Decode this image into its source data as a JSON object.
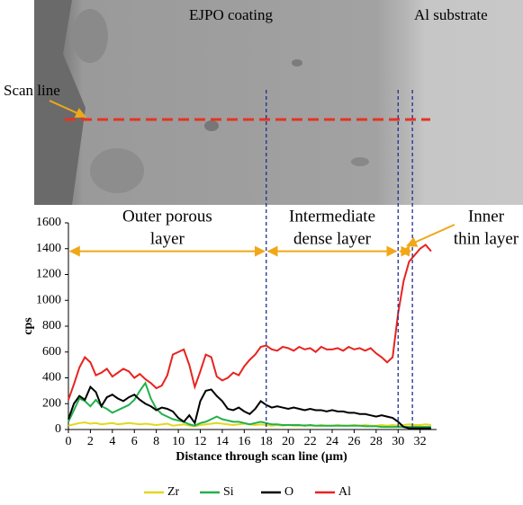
{
  "image": {
    "labels": [
      "EJPO coating",
      "Al substrate",
      "Scan line"
    ]
  },
  "chart_data": {
    "type": "line",
    "y_label": "cps",
    "x_label": "Distance through scan line (µm)",
    "x": [
      0,
      0.5,
      1,
      1.5,
      2,
      2.5,
      3,
      3.5,
      4,
      4.5,
      5,
      5.5,
      6,
      6.5,
      7,
      7.5,
      8,
      8.5,
      9,
      9.5,
      10,
      10.5,
      11,
      11.5,
      12,
      12.5,
      13,
      13.5,
      14,
      14.5,
      15,
      15.5,
      16,
      16.5,
      17,
      17.5,
      18,
      18.5,
      19,
      19.5,
      20,
      20.5,
      21,
      21.5,
      22,
      22.5,
      23,
      23.5,
      24,
      24.5,
      25,
      25.5,
      26,
      26.5,
      27,
      27.5,
      28,
      28.5,
      29,
      29.5,
      30,
      30.5,
      31,
      31.5,
      32,
      32.5,
      33
    ],
    "series": [
      {
        "name": "Zr",
        "color": "#e2d81c",
        "values": [
          30,
          40,
          50,
          55,
          45,
          50,
          40,
          45,
          50,
          40,
          45,
          50,
          45,
          40,
          45,
          40,
          35,
          40,
          45,
          30,
          35,
          40,
          30,
          25,
          35,
          40,
          45,
          50,
          45,
          40,
          35,
          40,
          45,
          40,
          35,
          40,
          35,
          30,
          35,
          30,
          35,
          30,
          30,
          35,
          30,
          30,
          35,
          30,
          30,
          35,
          30,
          30,
          35,
          30,
          35,
          30,
          30,
          35,
          30,
          35,
          30,
          35,
          40,
          35,
          35,
          40,
          35
        ]
      },
      {
        "name": "Si",
        "color": "#22b14c",
        "values": [
          60,
          150,
          240,
          220,
          180,
          230,
          180,
          160,
          130,
          150,
          170,
          190,
          230,
          300,
          360,
          240,
          160,
          120,
          100,
          80,
          70,
          60,
          40,
          30,
          50,
          60,
          80,
          100,
          80,
          70,
          60,
          60,
          50,
          40,
          50,
          60,
          50,
          40,
          40,
          35,
          35,
          35,
          35,
          30,
          35,
          30,
          30,
          30,
          30,
          30,
          30,
          30,
          30,
          30,
          25,
          25,
          25,
          20,
          20,
          20,
          20,
          20,
          20,
          20,
          20,
          20,
          20
        ]
      },
      {
        "name": "O",
        "color": "#000000",
        "values": [
          80,
          200,
          260,
          230,
          330,
          290,
          180,
          250,
          270,
          240,
          220,
          250,
          270,
          230,
          200,
          180,
          150,
          170,
          160,
          140,
          90,
          60,
          110,
          50,
          220,
          300,
          310,
          260,
          220,
          160,
          150,
          170,
          140,
          120,
          160,
          220,
          190,
          170,
          180,
          170,
          160,
          170,
          160,
          150,
          160,
          150,
          150,
          140,
          150,
          140,
          140,
          130,
          130,
          120,
          120,
          110,
          100,
          110,
          100,
          90,
          60,
          20,
          10,
          10,
          10,
          10,
          10
        ]
      },
      {
        "name": "Al",
        "color": "#e8231f",
        "values": [
          230,
          350,
          480,
          560,
          520,
          420,
          440,
          470,
          410,
          440,
          470,
          450,
          400,
          430,
          390,
          360,
          320,
          340,
          420,
          580,
          600,
          620,
          500,
          330,
          450,
          580,
          560,
          410,
          380,
          400,
          440,
          420,
          490,
          540,
          580,
          640,
          650,
          620,
          610,
          640,
          630,
          610,
          640,
          620,
          630,
          600,
          640,
          620,
          620,
          630,
          610,
          640,
          620,
          630,
          610,
          630,
          590,
          560,
          520,
          560,
          900,
          1150,
          1300,
          1350,
          1400,
          1430,
          1380
        ]
      }
    ],
    "xlim": [
      0,
      33.5
    ],
    "ylim": [
      0,
      1600
    ],
    "xticks": [
      0,
      2,
      4,
      6,
      8,
      10,
      12,
      14,
      16,
      18,
      20,
      22,
      24,
      26,
      28,
      30,
      32
    ],
    "yticks": [
      0,
      200,
      400,
      600,
      800,
      1000,
      1200,
      1400,
      1600
    ],
    "vlines": [
      18,
      30,
      31.3
    ],
    "annotations": [
      {
        "text": [
          "Outer porous",
          "layer"
        ],
        "from": 0,
        "to": 18
      },
      {
        "text": [
          "Intermediate",
          "dense layer"
        ],
        "from": 18,
        "to": 30
      },
      {
        "text": [
          "Inner",
          "thin layer"
        ],
        "from": 30,
        "to": 31.3
      }
    ]
  }
}
